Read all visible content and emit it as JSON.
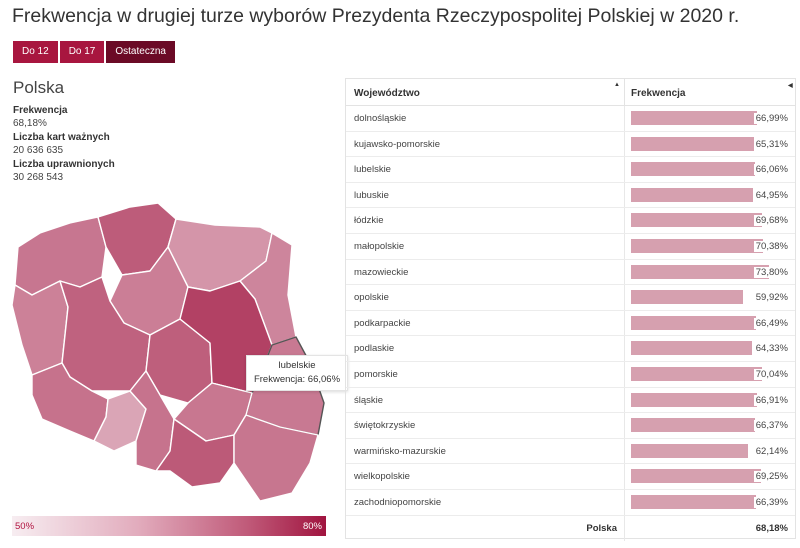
{
  "title": "Frekwencja w drugiej turze wyborów Prezydenta Rzeczypospolitej Polskiej w 2020 r.",
  "buttons": [
    {
      "label": "Do 12",
      "active": false
    },
    {
      "label": "Do 17",
      "active": false
    },
    {
      "label": "Ostateczna",
      "active": true
    }
  ],
  "summary": {
    "region": "Polska",
    "turnout_label": "Frekwencja",
    "turnout_value": "68,18%",
    "valid_label": "Liczba kart ważnych",
    "valid_value": "20 636 635",
    "eligible_label": "Liczba uprawnionych",
    "eligible_value": "30 268 543"
  },
  "tooltip": {
    "region": "lubelskie",
    "text": "Frekwencja: 66,06%"
  },
  "legend": {
    "min_label": "50%",
    "max_label": "80%",
    "min": 50,
    "max": 80
  },
  "colors": {
    "accent": "#a8163f",
    "active": "#6b0a26",
    "bar": "#d6a0af",
    "border": "#ffffff"
  },
  "chart_data": {
    "type": "table",
    "columns": [
      "Województwo",
      "Frekwencja"
    ],
    "rows": [
      {
        "name": "dolnośląskie",
        "value": 66.99,
        "label": "66,99%"
      },
      {
        "name": "kujawsko-pomorskie",
        "value": 65.31,
        "label": "65,31%"
      },
      {
        "name": "lubelskie",
        "value": 66.06,
        "label": "66,06%"
      },
      {
        "name": "lubuskie",
        "value": 64.95,
        "label": "64,95%"
      },
      {
        "name": "łódzkie",
        "value": 69.68,
        "label": "69,68%"
      },
      {
        "name": "małopolskie",
        "value": 70.38,
        "label": "70,38%"
      },
      {
        "name": "mazowieckie",
        "value": 73.8,
        "label": "73,80%"
      },
      {
        "name": "opolskie",
        "value": 59.92,
        "label": "59,92%"
      },
      {
        "name": "podkarpackie",
        "value": 66.49,
        "label": "66,49%"
      },
      {
        "name": "podlaskie",
        "value": 64.33,
        "label": "64,33%"
      },
      {
        "name": "pomorskie",
        "value": 70.04,
        "label": "70,04%"
      },
      {
        "name": "śląskie",
        "value": 66.91,
        "label": "66,91%"
      },
      {
        "name": "świętokrzyskie",
        "value": 66.37,
        "label": "66,37%"
      },
      {
        "name": "warmińsko-mazurskie",
        "value": 62.14,
        "label": "62,14%"
      },
      {
        "name": "wielkopolskie",
        "value": 69.25,
        "label": "69,25%"
      },
      {
        "name": "zachodniopomorskie",
        "value": 66.39,
        "label": "66,39%"
      }
    ],
    "total": {
      "name": "Polska",
      "value": 68.18,
      "label": "68,18%"
    }
  }
}
